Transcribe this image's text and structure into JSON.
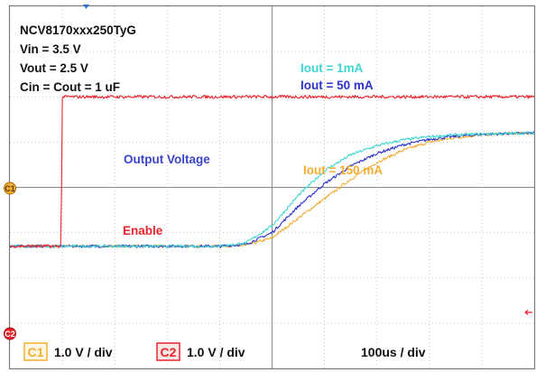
{
  "chart_data": {
    "type": "line",
    "x_unit": "us",
    "x_range": [
      0,
      1000
    ],
    "y_unit": "V",
    "y_range": [
      -2.7,
      5.3
    ],
    "grid": true,
    "grid_style": "dotted",
    "info_lines": [
      "NCV8170xxx250TyG",
      "Vin = 3.5 V",
      "Vout = 2.5 V",
      "Cin = Cout = 1 uF"
    ],
    "annotations": {
      "output_voltage": "Output Voltage",
      "enable": "Enable"
    },
    "series": [
      {
        "name": "Iout = 1mA",
        "channel": "C1",
        "color": "#3fd6d0",
        "x": [
          0,
          100,
          200,
          300,
          400,
          450,
          500,
          550,
          600,
          650,
          700,
          750,
          800,
          850,
          900,
          950,
          1000
        ],
        "y": [
          0,
          0,
          0,
          0,
          0,
          0.07,
          0.45,
          1.12,
          1.67,
          2.02,
          2.22,
          2.35,
          2.42,
          2.46,
          2.48,
          2.49,
          2.5
        ]
      },
      {
        "name": "Iout = 50 mA",
        "channel": "C1",
        "color": "#2b33cc",
        "x": [
          0,
          100,
          200,
          300,
          400,
          450,
          500,
          550,
          600,
          650,
          700,
          750,
          800,
          850,
          900,
          950,
          1000
        ],
        "y": [
          0,
          0,
          0,
          0,
          0,
          0.04,
          0.3,
          0.88,
          1.38,
          1.77,
          2.05,
          2.24,
          2.36,
          2.43,
          2.47,
          2.49,
          2.5
        ]
      },
      {
        "name": "Iout = 150 mA",
        "channel": "C1",
        "color": "#f2ad32",
        "x": [
          0,
          100,
          200,
          300,
          400,
          450,
          500,
          550,
          600,
          650,
          700,
          750,
          800,
          850,
          900,
          950,
          1000
        ],
        "y": [
          0,
          0,
          0,
          0,
          0,
          0.02,
          0.18,
          0.62,
          1.05,
          1.48,
          1.85,
          2.12,
          2.3,
          2.4,
          2.46,
          2.49,
          2.5
        ]
      },
      {
        "name": "Enable",
        "channel": "C2",
        "color": "#e8242d",
        "x": [
          0,
          98,
          99,
          120,
          1000
        ],
        "y": [
          0,
          0,
          3.3,
          3.3,
          3.3
        ]
      }
    ],
    "channel_settings": [
      {
        "channel": "C1",
        "scale": "1.0 V / div",
        "color": "#f2ad32"
      },
      {
        "channel": "C2",
        "scale": "1.0 V / div",
        "color": "#e8242d"
      }
    ],
    "timebase": "100us / div"
  }
}
